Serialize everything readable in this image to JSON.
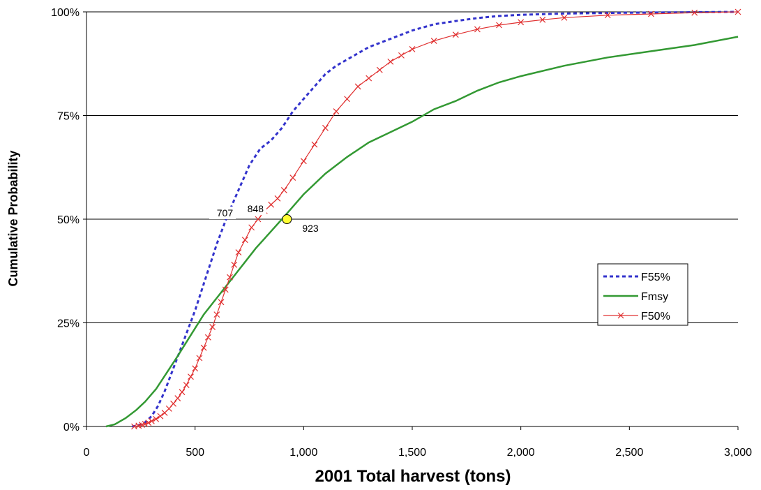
{
  "chart_data": {
    "type": "line",
    "xlabel": "2001 Total harvest (tons)",
    "ylabel": "Cumulative Probability",
    "xlim": [
      0,
      3000
    ],
    "ylim": [
      0,
      1
    ],
    "x_ticks": [
      "0",
      "500",
      "1,000",
      "1,500",
      "2,000",
      "2,500",
      "3,000"
    ],
    "y_ticks": [
      "0%",
      "25%",
      "50%",
      "75%",
      "100%"
    ],
    "grid": "horizontal",
    "legend_position": "right",
    "series": [
      {
        "name": "F55%",
        "color": "#3333cc",
        "style": "dashed",
        "points": [
          [
            210,
            0
          ],
          [
            240,
            0.003
          ],
          [
            270,
            0.01
          ],
          [
            300,
            0.025
          ],
          [
            330,
            0.05
          ],
          [
            360,
            0.085
          ],
          [
            400,
            0.14
          ],
          [
            450,
            0.21
          ],
          [
            500,
            0.28
          ],
          [
            550,
            0.36
          ],
          [
            600,
            0.44
          ],
          [
            650,
            0.51
          ],
          [
            700,
            0.57
          ],
          [
            750,
            0.63
          ],
          [
            800,
            0.67
          ],
          [
            850,
            0.69
          ],
          [
            900,
            0.72
          ],
          [
            950,
            0.76
          ],
          [
            1000,
            0.79
          ],
          [
            1050,
            0.82
          ],
          [
            1100,
            0.85
          ],
          [
            1150,
            0.87
          ],
          [
            1200,
            0.885
          ],
          [
            1250,
            0.9
          ],
          [
            1300,
            0.915
          ],
          [
            1400,
            0.935
          ],
          [
            1500,
            0.955
          ],
          [
            1600,
            0.97
          ],
          [
            1700,
            0.978
          ],
          [
            1800,
            0.985
          ],
          [
            1900,
            0.99
          ],
          [
            2000,
            0.993
          ],
          [
            2200,
            0.996
          ],
          [
            2500,
            0.998
          ],
          [
            3000,
            1.0
          ]
        ]
      },
      {
        "name": "Fmsy",
        "color": "#339933",
        "style": "solid",
        "points": [
          [
            90,
            0
          ],
          [
            130,
            0.005
          ],
          [
            180,
            0.02
          ],
          [
            230,
            0.04
          ],
          [
            270,
            0.06
          ],
          [
            320,
            0.09
          ],
          [
            370,
            0.13
          ],
          [
            420,
            0.17
          ],
          [
            480,
            0.22
          ],
          [
            540,
            0.27
          ],
          [
            600,
            0.31
          ],
          [
            660,
            0.35
          ],
          [
            720,
            0.39
          ],
          [
            780,
            0.43
          ],
          [
            840,
            0.465
          ],
          [
            900,
            0.5
          ],
          [
            950,
            0.53
          ],
          [
            1000,
            0.56
          ],
          [
            1100,
            0.61
          ],
          [
            1200,
            0.65
          ],
          [
            1300,
            0.685
          ],
          [
            1400,
            0.71
          ],
          [
            1500,
            0.735
          ],
          [
            1600,
            0.765
          ],
          [
            1700,
            0.785
          ],
          [
            1800,
            0.81
          ],
          [
            1900,
            0.83
          ],
          [
            2000,
            0.845
          ],
          [
            2200,
            0.87
          ],
          [
            2400,
            0.89
          ],
          [
            2600,
            0.905
          ],
          [
            2800,
            0.92
          ],
          [
            3000,
            0.94
          ]
        ]
      },
      {
        "name": "F50%",
        "color": "#e03030",
        "style": "solid-x",
        "points": [
          [
            220,
            0
          ],
          [
            240,
            0.002
          ],
          [
            255,
            0.004
          ],
          [
            270,
            0.006
          ],
          [
            285,
            0.009
          ],
          [
            300,
            0.013
          ],
          [
            320,
            0.018
          ],
          [
            340,
            0.025
          ],
          [
            360,
            0.033
          ],
          [
            380,
            0.043
          ],
          [
            400,
            0.055
          ],
          [
            420,
            0.068
          ],
          [
            440,
            0.083
          ],
          [
            460,
            0.1
          ],
          [
            480,
            0.12
          ],
          [
            500,
            0.14
          ],
          [
            520,
            0.165
          ],
          [
            540,
            0.19
          ],
          [
            560,
            0.215
          ],
          [
            580,
            0.24
          ],
          [
            600,
            0.27
          ],
          [
            620,
            0.3
          ],
          [
            640,
            0.33
          ],
          [
            660,
            0.36
          ],
          [
            680,
            0.39
          ],
          [
            700,
            0.42
          ],
          [
            730,
            0.45
          ],
          [
            760,
            0.48
          ],
          [
            790,
            0.5
          ],
          [
            820,
            0.52
          ],
          [
            850,
            0.535
          ],
          [
            880,
            0.55
          ],
          [
            910,
            0.57
          ],
          [
            950,
            0.6
          ],
          [
            1000,
            0.64
          ],
          [
            1050,
            0.68
          ],
          [
            1100,
            0.72
          ],
          [
            1150,
            0.76
          ],
          [
            1200,
            0.79
          ],
          [
            1250,
            0.82
          ],
          [
            1300,
            0.84
          ],
          [
            1350,
            0.86
          ],
          [
            1400,
            0.88
          ],
          [
            1450,
            0.895
          ],
          [
            1500,
            0.91
          ],
          [
            1600,
            0.93
          ],
          [
            1700,
            0.945
          ],
          [
            1800,
            0.958
          ],
          [
            1900,
            0.968
          ],
          [
            2000,
            0.975
          ],
          [
            2100,
            0.981
          ],
          [
            2200,
            0.986
          ],
          [
            2400,
            0.992
          ],
          [
            2600,
            0.995
          ],
          [
            2800,
            0.998
          ],
          [
            3000,
            1.0
          ]
        ]
      }
    ],
    "annotations": [
      {
        "text": "707",
        "x": 707,
        "y": 0.5
      },
      {
        "text": "848",
        "x": 848,
        "y": 0.5
      },
      {
        "text": "923",
        "x": 923,
        "y": 0.5
      }
    ],
    "marker": {
      "x": 923,
      "y": 0.5,
      "color": "#ffff33"
    }
  }
}
